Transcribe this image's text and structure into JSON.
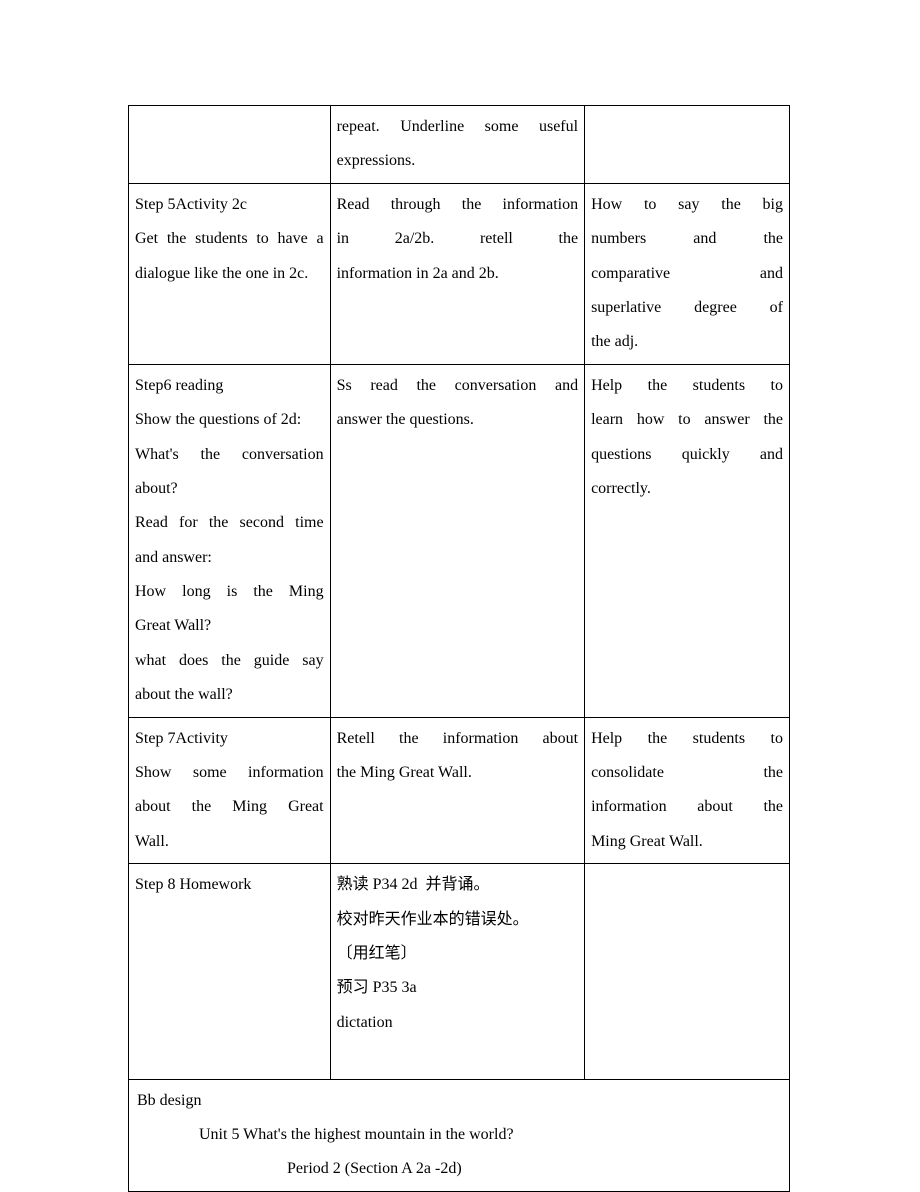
{
  "table": {
    "rows": [
      {
        "col1": "",
        "col2": "repeat. Underline some useful expressions.",
        "col3": ""
      },
      {
        "col1": "Step 5Activity 2c\nGet the students to have a dialogue like the one in 2c.",
        "col2": "Read through the information in 2a/2b. retell the information in 2a and 2b.",
        "col3": "How to say the big numbers and the comparative and superlative degree of the adj."
      },
      {
        "col1": "Step6 reading\nShow the questions of 2d: What's the conversation about?\nRead for the second time and answer:\nHow long is the Ming Great Wall?\nwhat does the guide say about the wall?",
        "col2": "Ss read the conversation and answer the questions.",
        "col3": "Help the students to learn how to answer the questions quickly and correctly."
      },
      {
        "col1": "Step 7Activity\nShow some information about the Ming Great Wall.",
        "col2": "Retell the information about the Ming Great Wall.",
        "col3": "Help the students to consolidate the information about the Ming Great Wall."
      },
      {
        "col1": "Step 8 Homework",
        "col2": "熟读 P34 2d  并背诵。\n校对昨天作业本的错误处。〔用红笔〕\n预习 P35 3a\ndictation\n ",
        "col3": ""
      }
    ],
    "footer": {
      "label": "Bb design",
      "title": "Unit 5    What's the highest mountain in the world?",
      "subtitle": "Period 2 (Section A 2a -2d)"
    }
  }
}
